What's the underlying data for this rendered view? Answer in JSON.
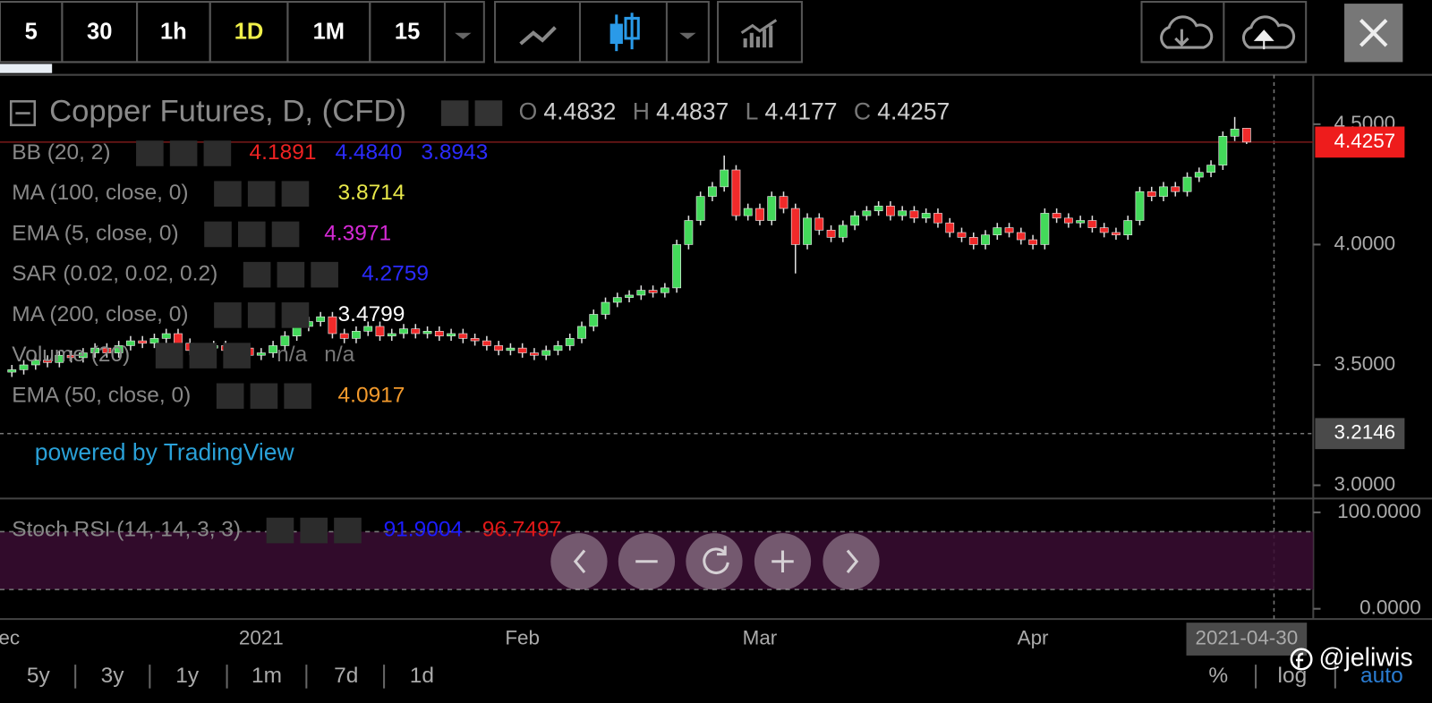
{
  "toolbar": {
    "intervals": [
      "5",
      "30",
      "1h",
      "1D",
      "1M",
      "15"
    ],
    "active_index": 3
  },
  "chart_data": {
    "type": "candlestick",
    "title": "Copper Futures, D, (CFD)",
    "ohlc_labels": [
      "O",
      "H",
      "L",
      "C"
    ],
    "categories": [
      "ec",
      null,
      null,
      null,
      null,
      null,
      null,
      null,
      null,
      null,
      null,
      null,
      null,
      null,
      null,
      null,
      null,
      null,
      null,
      null,
      null,
      "2021",
      null,
      null,
      null,
      null,
      null,
      null,
      null,
      null,
      null,
      null,
      null,
      null,
      null,
      null,
      null,
      null,
      null,
      null,
      null,
      null,
      null,
      "Feb",
      null,
      null,
      null,
      null,
      null,
      null,
      null,
      null,
      null,
      null,
      null,
      null,
      null,
      null,
      null,
      null,
      null,
      null,
      null,
      "Mar",
      null,
      null,
      null,
      null,
      null,
      null,
      null,
      null,
      null,
      null,
      null,
      null,
      null,
      null,
      null,
      null,
      null,
      null,
      null,
      null,
      null,
      null,
      "Apr",
      null,
      null,
      null,
      null,
      null,
      null,
      null,
      null,
      null,
      null,
      null,
      null,
      null,
      null,
      null,
      null,
      null,
      "2021-04-30"
    ],
    "candles": [
      [
        3.47,
        3.5,
        3.45,
        3.48
      ],
      [
        3.48,
        3.52,
        3.46,
        3.5
      ],
      [
        3.5,
        3.54,
        3.48,
        3.52
      ],
      [
        3.52,
        3.54,
        3.49,
        3.51
      ],
      [
        3.51,
        3.56,
        3.49,
        3.54
      ],
      [
        3.54,
        3.56,
        3.51,
        3.53
      ],
      [
        3.53,
        3.57,
        3.51,
        3.55
      ],
      [
        3.55,
        3.59,
        3.53,
        3.57
      ],
      [
        3.57,
        3.59,
        3.53,
        3.55
      ],
      [
        3.55,
        3.6,
        3.53,
        3.58
      ],
      [
        3.58,
        3.62,
        3.56,
        3.6
      ],
      [
        3.6,
        3.62,
        3.57,
        3.59
      ],
      [
        3.59,
        3.63,
        3.57,
        3.61
      ],
      [
        3.61,
        3.65,
        3.59,
        3.63
      ],
      [
        3.63,
        3.65,
        3.57,
        3.59
      ],
      [
        3.59,
        3.61,
        3.54,
        3.56
      ],
      [
        3.56,
        3.59,
        3.54,
        3.57
      ],
      [
        3.57,
        3.6,
        3.55,
        3.58
      ],
      [
        3.58,
        3.6,
        3.54,
        3.56
      ],
      [
        3.56,
        3.59,
        3.54,
        3.57
      ],
      [
        3.57,
        3.59,
        3.52,
        3.54
      ],
      [
        3.54,
        3.57,
        3.52,
        3.55
      ],
      [
        3.55,
        3.6,
        3.53,
        3.58
      ],
      [
        3.58,
        3.64,
        3.56,
        3.62
      ],
      [
        3.62,
        3.68,
        3.6,
        3.66
      ],
      [
        3.66,
        3.7,
        3.64,
        3.68
      ],
      [
        3.68,
        3.72,
        3.66,
        3.7
      ],
      [
        3.7,
        3.72,
        3.61,
        3.63
      ],
      [
        3.63,
        3.65,
        3.59,
        3.61
      ],
      [
        3.61,
        3.66,
        3.59,
        3.64
      ],
      [
        3.64,
        3.68,
        3.62,
        3.66
      ],
      [
        3.66,
        3.68,
        3.6,
        3.62
      ],
      [
        3.62,
        3.65,
        3.6,
        3.63
      ],
      [
        3.63,
        3.67,
        3.61,
        3.65
      ],
      [
        3.65,
        3.67,
        3.61,
        3.63
      ],
      [
        3.63,
        3.66,
        3.61,
        3.64
      ],
      [
        3.64,
        3.66,
        3.6,
        3.62
      ],
      [
        3.62,
        3.65,
        3.6,
        3.63
      ],
      [
        3.63,
        3.65,
        3.59,
        3.61
      ],
      [
        3.61,
        3.63,
        3.58,
        3.6
      ],
      [
        3.6,
        3.62,
        3.56,
        3.58
      ],
      [
        3.58,
        3.6,
        3.54,
        3.56
      ],
      [
        3.56,
        3.59,
        3.54,
        3.57
      ],
      [
        3.57,
        3.59,
        3.53,
        3.55
      ],
      [
        3.55,
        3.57,
        3.52,
        3.54
      ],
      [
        3.54,
        3.58,
        3.52,
        3.56
      ],
      [
        3.56,
        3.6,
        3.54,
        3.58
      ],
      [
        3.58,
        3.63,
        3.56,
        3.61
      ],
      [
        3.61,
        3.68,
        3.59,
        3.66
      ],
      [
        3.66,
        3.73,
        3.64,
        3.71
      ],
      [
        3.71,
        3.78,
        3.69,
        3.76
      ],
      [
        3.76,
        3.8,
        3.74,
        3.78
      ],
      [
        3.78,
        3.81,
        3.76,
        3.79
      ],
      [
        3.79,
        3.83,
        3.77,
        3.81
      ],
      [
        3.81,
        3.83,
        3.78,
        3.8
      ],
      [
        3.8,
        3.84,
        3.78,
        3.82
      ],
      [
        3.82,
        4.02,
        3.8,
        4.0
      ],
      [
        4.0,
        4.12,
        3.98,
        4.1
      ],
      [
        4.1,
        4.22,
        4.08,
        4.2
      ],
      [
        4.2,
        4.26,
        4.18,
        4.24
      ],
      [
        4.24,
        4.37,
        4.22,
        4.31
      ],
      [
        4.31,
        4.33,
        4.1,
        4.12
      ],
      [
        4.12,
        4.17,
        4.1,
        4.15
      ],
      [
        4.15,
        4.17,
        4.08,
        4.1
      ],
      [
        4.1,
        4.22,
        4.08,
        4.2
      ],
      [
        4.2,
        4.22,
        4.13,
        4.15
      ],
      [
        4.15,
        4.17,
        3.88,
        4.0
      ],
      [
        4.0,
        4.13,
        3.98,
        4.11
      ],
      [
        4.11,
        4.13,
        4.04,
        4.06
      ],
      [
        4.06,
        4.08,
        4.01,
        4.03
      ],
      [
        4.03,
        4.1,
        4.01,
        4.08
      ],
      [
        4.08,
        4.14,
        4.06,
        4.12
      ],
      [
        4.12,
        4.16,
        4.1,
        4.14
      ],
      [
        4.14,
        4.18,
        4.12,
        4.16
      ],
      [
        4.16,
        4.18,
        4.1,
        4.12
      ],
      [
        4.12,
        4.16,
        4.1,
        4.14
      ],
      [
        4.14,
        4.16,
        4.09,
        4.11
      ],
      [
        4.11,
        4.15,
        4.09,
        4.13
      ],
      [
        4.13,
        4.15,
        4.07,
        4.09
      ],
      [
        4.09,
        4.11,
        4.03,
        4.05
      ],
      [
        4.05,
        4.07,
        4.01,
        4.03
      ],
      [
        4.03,
        4.05,
        3.98,
        4.0
      ],
      [
        4.0,
        4.06,
        3.98,
        4.04
      ],
      [
        4.04,
        4.09,
        4.02,
        4.07
      ],
      [
        4.07,
        4.09,
        4.03,
        4.05
      ],
      [
        4.05,
        4.07,
        4.0,
        4.02
      ],
      [
        4.02,
        4.04,
        3.98,
        4.0
      ],
      [
        4.0,
        4.15,
        3.98,
        4.13
      ],
      [
        4.13,
        4.15,
        4.09,
        4.11
      ],
      [
        4.11,
        4.13,
        4.07,
        4.09
      ],
      [
        4.09,
        4.12,
        4.07,
        4.1
      ],
      [
        4.1,
        4.12,
        4.05,
        4.07
      ],
      [
        4.07,
        4.09,
        4.03,
        4.05
      ],
      [
        4.05,
        4.07,
        4.02,
        4.04
      ],
      [
        4.04,
        4.12,
        4.02,
        4.1
      ],
      [
        4.1,
        4.24,
        4.08,
        4.22
      ],
      [
        4.22,
        4.24,
        4.18,
        4.2
      ],
      [
        4.2,
        4.26,
        4.18,
        4.24
      ],
      [
        4.24,
        4.26,
        4.2,
        4.22
      ],
      [
        4.22,
        4.3,
        4.2,
        4.28
      ],
      [
        4.28,
        4.32,
        4.26,
        4.3
      ],
      [
        4.3,
        4.35,
        4.28,
        4.33
      ],
      [
        4.33,
        4.47,
        4.31,
        4.45
      ],
      [
        4.45,
        4.53,
        4.43,
        4.48
      ],
      [
        4.4832,
        4.4837,
        4.4177,
        4.4257
      ]
    ],
    "up_color": "#43d95a",
    "down_color": "#f02a2a",
    "ylim": [
      2.945,
      4.705
    ],
    "yticks": [
      {
        "value": 3,
        "label": "3.0000"
      },
      {
        "value": 3.5,
        "label": "3.5000"
      },
      {
        "value": 4,
        "label": "4.0000"
      },
      {
        "value": 4.5,
        "label": "4.5000"
      }
    ],
    "price_markers": [
      {
        "value": 4.4257,
        "label": "4.4257",
        "color": "#ee1c1c"
      },
      {
        "value": 3.2146,
        "label": "3.2146",
        "color": "#4a4a4a"
      }
    ],
    "studies": [
      {
        "name": "BB (20, 2)",
        "values": [
          {
            "text": "4.1891",
            "color": "#ee2222"
          },
          {
            "text": "4.4840",
            "color": "#2b2bff"
          },
          {
            "text": "3.8943",
            "color": "#2b2bff"
          }
        ]
      },
      {
        "name": "MA (100, close, 0)",
        "values": [
          {
            "text": "3.8714",
            "color": "#e8e84a"
          }
        ]
      },
      {
        "name": "EMA (5, close, 0)",
        "values": [
          {
            "text": "4.3971",
            "color": "#d62ad6"
          }
        ]
      },
      {
        "name": "SAR (0.02, 0.02, 0.2)",
        "values": [
          {
            "text": "4.2759",
            "color": "#2b2bff"
          }
        ]
      },
      {
        "name": "MA (200, close, 0)",
        "values": [
          {
            "text": "3.4799",
            "color": "#ffffff"
          }
        ]
      },
      {
        "name": "Volume (20)",
        "values": [
          {
            "text": "n/a",
            "color": "#777777"
          },
          {
            "text": "n/a",
            "color": "#777777"
          }
        ]
      },
      {
        "name": "EMA (50, close, 0)",
        "values": [
          {
            "text": "4.0917",
            "color": "#f39a2c"
          }
        ]
      }
    ],
    "watermark": "powered by TradingView",
    "oscillator": {
      "title": "Stoch RSI (14, 14, 3, 3)",
      "values": [
        {
          "text": "91.9004",
          "color": "#1c1cff"
        },
        {
          "text": "96.7497",
          "color": "#e01818"
        }
      ],
      "ylim": [
        -10.6,
        114.4
      ],
      "yticks": [
        {
          "value": 100,
          "label": "100.0000"
        },
        {
          "value": 0,
          "label": "0.0000"
        }
      ],
      "bands": [
        20,
        80
      ]
    }
  },
  "bottom_bar": {
    "ranges": [
      "5y",
      "3y",
      "1y",
      "1m",
      "7d",
      "1d"
    ],
    "options": [
      "%",
      "log",
      "auto"
    ],
    "watermark": "@jeliwis"
  }
}
